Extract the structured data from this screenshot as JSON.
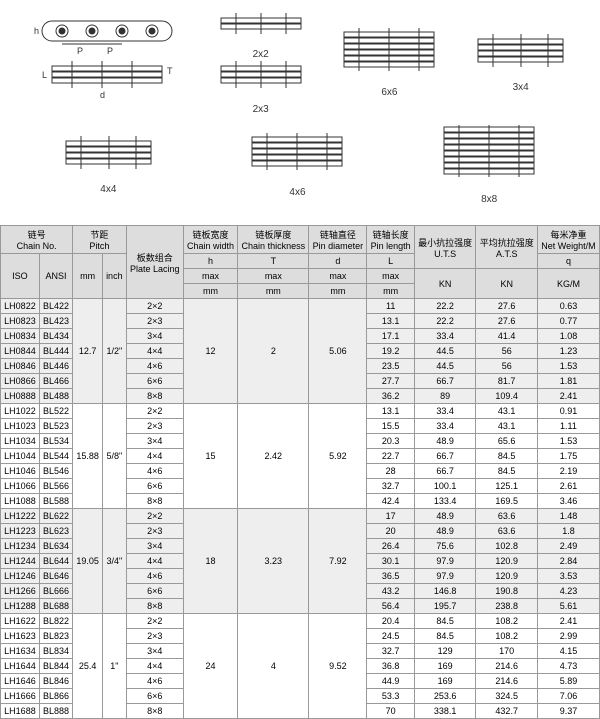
{
  "diag_labels": [
    "2x2",
    "2x3",
    "6x6",
    "3x4",
    "4x4",
    "4x6",
    "8x8"
  ],
  "headers": {
    "chain_no": "链号",
    "chain_no_en": "Chain No.",
    "pitch": "节距",
    "pitch_en": "Pitch",
    "plate": "板数组合",
    "plate_en": "Plate Lacing",
    "cw": "链板宽度",
    "cw_en": "Chain width",
    "cw_sym": "h",
    "ct": "链板厚度",
    "ct_en": "Chain thickness",
    "ct_sym": "T",
    "pd": "链轴直径",
    "pd_en": "Pin diameter",
    "pd_sym": "d",
    "pl": "链轴长度",
    "pl_en": "Pin length",
    "pl_sym": "L",
    "uts": "最小抗拉强度",
    "uts_en": "U.T.S",
    "ats": "平均抗拉强度",
    "ats_en": "A.T.S",
    "nw": "每米净重",
    "nw_en": "Net Weight/M",
    "nw_sym": "q",
    "iso": "ISO",
    "ansi": "ANSI",
    "mm": "mm",
    "inch": "inch",
    "max": "max",
    "kn": "KN",
    "kgm": "KG/M"
  },
  "groups": [
    {
      "mm": "12.7",
      "inch": "1/2\"",
      "h": "12",
      "t": "2",
      "d": "5.06",
      "rows": [
        [
          "LH0822",
          "BL422",
          "2×2",
          "11",
          "22.2",
          "27.6",
          "0.63"
        ],
        [
          "LH0823",
          "BL423",
          "2×3",
          "13.1",
          "22.2",
          "27.6",
          "0.77"
        ],
        [
          "LH0834",
          "BL434",
          "3×4",
          "17.1",
          "33.4",
          "41.4",
          "1.08"
        ],
        [
          "LH0844",
          "BL444",
          "4×4",
          "19.2",
          "44.5",
          "56",
          "1.23"
        ],
        [
          "LH0846",
          "BL446",
          "4×6",
          "23.5",
          "44.5",
          "56",
          "1.53"
        ],
        [
          "LH0866",
          "BL466",
          "6×6",
          "27.7",
          "66.7",
          "81.7",
          "1.81"
        ],
        [
          "LH0888",
          "BL488",
          "8×8",
          "36.2",
          "89",
          "109.4",
          "2.41"
        ]
      ]
    },
    {
      "mm": "15.88",
      "inch": "5/8\"",
      "h": "15",
      "t": "2.42",
      "d": "5.92",
      "rows": [
        [
          "LH1022",
          "BL522",
          "2×2",
          "13.1",
          "33.4",
          "43.1",
          "0.91"
        ],
        [
          "LH1023",
          "BL523",
          "2×3",
          "15.5",
          "33.4",
          "43.1",
          "1.11"
        ],
        [
          "LH1034",
          "BL534",
          "3×4",
          "20.3",
          "48.9",
          "65.6",
          "1.53"
        ],
        [
          "LH1044",
          "BL544",
          "4×4",
          "22.7",
          "66.7",
          "84.5",
          "1.75"
        ],
        [
          "LH1046",
          "BL546",
          "4×6",
          "28",
          "66.7",
          "84.5",
          "2.19"
        ],
        [
          "LH1066",
          "BL566",
          "6×6",
          "32.7",
          "100.1",
          "125.1",
          "2.61"
        ],
        [
          "LH1088",
          "BL588",
          "8×8",
          "42.4",
          "133.4",
          "169.5",
          "3.46"
        ]
      ]
    },
    {
      "mm": "19.05",
      "inch": "3/4\"",
      "h": "18",
      "t": "3.23",
      "d": "7.92",
      "rows": [
        [
          "LH1222",
          "BL622",
          "2×2",
          "17",
          "48.9",
          "63.6",
          "1.48"
        ],
        [
          "LH1223",
          "BL623",
          "2×3",
          "20",
          "48.9",
          "63.6",
          "1.8"
        ],
        [
          "LH1234",
          "BL634",
          "3×4",
          "26.4",
          "75.6",
          "102.8",
          "2.49"
        ],
        [
          "LH1244",
          "BL644",
          "4×4",
          "30.1",
          "97.9",
          "120.9",
          "2.84"
        ],
        [
          "LH1246",
          "BL646",
          "4×6",
          "36.5",
          "97.9",
          "120.9",
          "3.53"
        ],
        [
          "LH1266",
          "BL666",
          "6×6",
          "43.2",
          "146.8",
          "190.8",
          "4.23"
        ],
        [
          "LH1288",
          "BL688",
          "8×8",
          "56.4",
          "195.7",
          "238.8",
          "5.61"
        ]
      ]
    },
    {
      "mm": "25.4",
      "inch": "1\"",
      "h": "24",
      "t": "4",
      "d": "9.52",
      "rows": [
        [
          "LH1622",
          "BL822",
          "2×2",
          "20.4",
          "84.5",
          "108.2",
          "2.41"
        ],
        [
          "LH1623",
          "BL823",
          "2×3",
          "24.5",
          "84.5",
          "108.2",
          "2.99"
        ],
        [
          "LH1634",
          "BL834",
          "3×4",
          "32.7",
          "129",
          "170",
          "4.15"
        ],
        [
          "LH1644",
          "BL844",
          "4×4",
          "36.8",
          "169",
          "214.6",
          "4.73"
        ],
        [
          "LH1646",
          "BL846",
          "4×6",
          "44.9",
          "169",
          "214.6",
          "5.89"
        ],
        [
          "LH1666",
          "BL866",
          "6×6",
          "53.3",
          "253.6",
          "324.5",
          "7.06"
        ],
        [
          "LH1688",
          "BL888",
          "8×8",
          "70",
          "338.1",
          "432.7",
          "9.37"
        ]
      ]
    }
  ]
}
